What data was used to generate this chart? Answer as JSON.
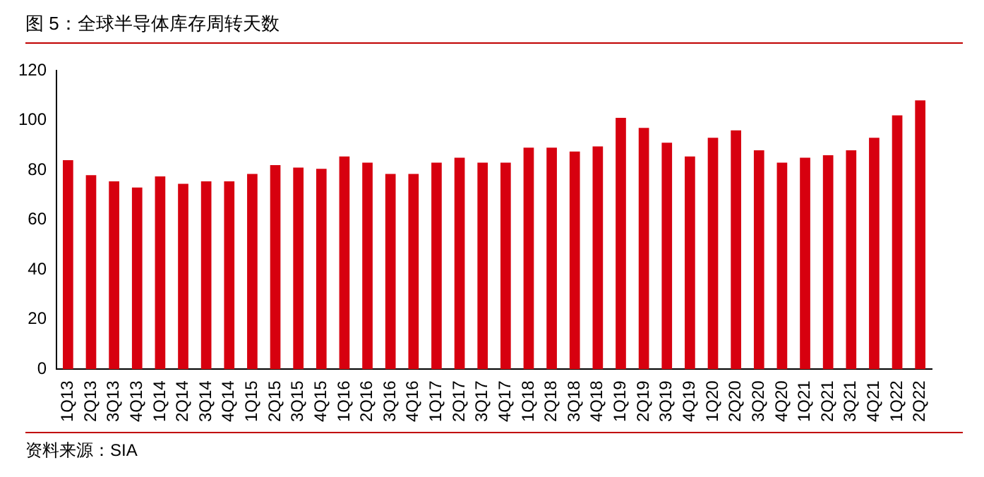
{
  "chart_data": {
    "type": "bar",
    "title": "图 5：全球半导体库存周转天数",
    "categories": [
      "1Q13",
      "2Q13",
      "3Q13",
      "4Q13",
      "1Q14",
      "2Q14",
      "3Q14",
      "4Q14",
      "1Q15",
      "2Q15",
      "3Q15",
      "4Q15",
      "1Q16",
      "2Q16",
      "3Q16",
      "4Q16",
      "1Q17",
      "2Q17",
      "3Q17",
      "4Q17",
      "1Q18",
      "2Q18",
      "3Q18",
      "4Q18",
      "1Q19",
      "2Q19",
      "3Q19",
      "4Q19",
      "1Q20",
      "2Q20",
      "3Q20",
      "4Q20",
      "1Q21",
      "2Q21",
      "3Q21",
      "4Q21",
      "1Q22",
      "2Q22"
    ],
    "values": [
      84,
      78,
      75.5,
      73,
      77.5,
      74.5,
      75.5,
      75.5,
      78.5,
      82,
      81,
      80.5,
      85.5,
      83,
      78.5,
      78.5,
      83,
      85,
      83,
      83,
      89,
      89,
      87.5,
      89.5,
      101,
      97,
      91,
      85.5,
      93,
      96,
      88,
      83,
      85,
      86,
      88,
      93,
      102,
      108
    ],
    "color": "#d7000f",
    "ylim": [
      0,
      120
    ],
    "yticks": [
      0,
      20,
      40,
      60,
      80,
      100,
      120
    ],
    "grid": false,
    "legend": false,
    "annotations": [
      "资料来源：SIA"
    ]
  }
}
